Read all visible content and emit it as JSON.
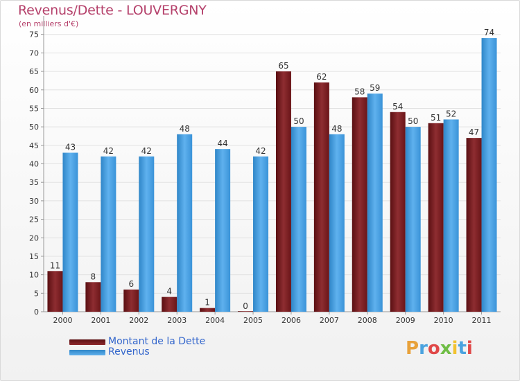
{
  "header": {
    "title": "Revenus/Dette - LOUVERGNY",
    "subtitle": "(en milliers d'€)"
  },
  "chart_data": {
    "type": "bar",
    "categories": [
      "2000",
      "2001",
      "2002",
      "2003",
      "2004",
      "2005",
      "2006",
      "2007",
      "2008",
      "2009",
      "2010",
      "2011"
    ],
    "series": [
      {
        "name": "Montant de la Dette",
        "values": [
          11,
          8,
          6,
          4,
          1,
          0,
          65,
          62,
          58,
          54,
          51,
          47
        ],
        "color": "#7a1e22"
      },
      {
        "name": "Revenus",
        "values": [
          43,
          42,
          42,
          48,
          44,
          42,
          50,
          48,
          59,
          50,
          52,
          74
        ],
        "color": "#3c98dd"
      }
    ],
    "ylim": [
      0,
      80
    ],
    "yticks": [
      0,
      5,
      10,
      15,
      20,
      25,
      30,
      35,
      40,
      45,
      50,
      55,
      60,
      65,
      70,
      75
    ],
    "grid": true,
    "legend_position": "bottom-left"
  },
  "logo": {
    "text": "Proxiti",
    "letters": [
      "P",
      "r",
      "o",
      "x",
      "i",
      "t",
      "i"
    ],
    "colors": [
      "#e8a13a",
      "#4aa3df",
      "#e04848",
      "#6fbd45",
      "#f2c230",
      "#4aa3df",
      "#e04848"
    ]
  }
}
